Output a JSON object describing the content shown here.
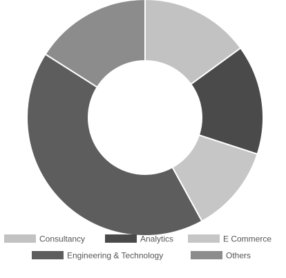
{
  "chart_data": {
    "type": "pie",
    "donut": true,
    "legend_position": "bottom",
    "categories": [
      "Consultancy",
      "Analytics",
      "E Commerce",
      "Engineering & Technology",
      "Others"
    ],
    "values": [
      15,
      15,
      12,
      42,
      16
    ],
    "colors": [
      "#c2c2c2",
      "#4a4a4a",
      "#c6c6c6",
      "#5d5d5d",
      "#8c8c8c"
    ]
  }
}
